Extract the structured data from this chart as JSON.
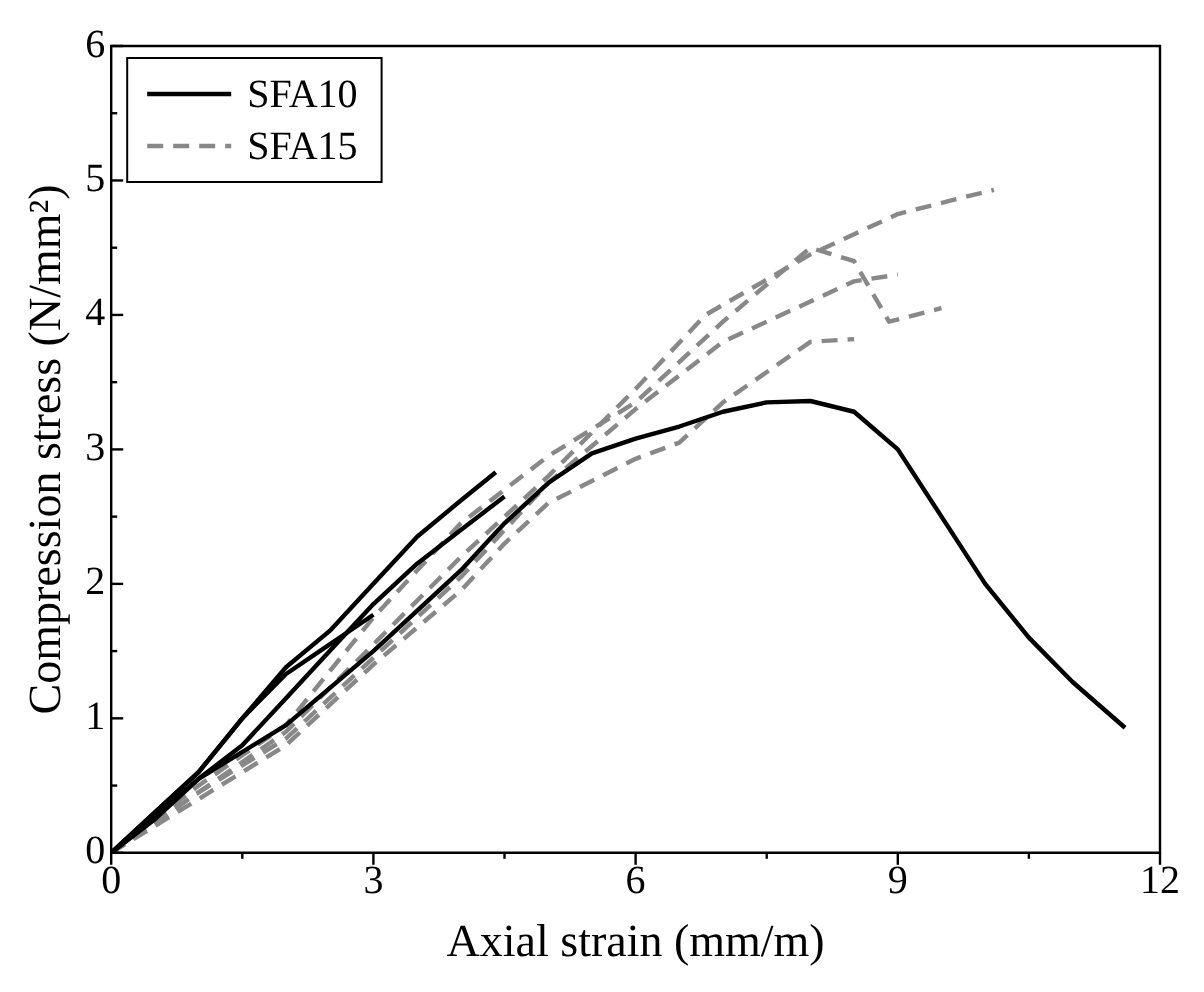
{
  "chart_data": {
    "type": "line",
    "xlabel": "Axial strain (mm/m)",
    "ylabel": "Compression stress (N/mm²)",
    "xlim": [
      0,
      12
    ],
    "xticks": [
      0,
      {
        "value": 1.5,
        "label": null
      },
      3,
      {
        "value": 4.5,
        "label": null
      },
      6,
      {
        "value": 7.5,
        "label": null
      },
      9,
      {
        "value": 10.5,
        "label": null
      },
      12
    ],
    "ylim": [
      0,
      6
    ],
    "yticks": [
      0,
      {
        "value": 0.5,
        "label": null
      },
      1,
      {
        "value": 1.5,
        "label": null
      },
      2,
      {
        "value": 2.5,
        "label": null
      },
      3,
      {
        "value": 3.5,
        "label": null
      },
      4,
      {
        "value": 4.5,
        "label": null
      },
      5,
      {
        "value": 5.5,
        "label": null
      },
      6
    ],
    "grid": false,
    "legend": "top left",
    "marker": "none",
    "series": [
      {
        "name": "SFA10",
        "color": "#000000",
        "line_style": "solid",
        "x": [
          0,
          0.5,
          1,
          1.5,
          2,
          2.5,
          3,
          3.5,
          4,
          4.4
        ],
        "values": [
          0,
          0.3,
          0.6,
          1.0,
          1.38,
          1.65,
          2.0,
          2.35,
          2.62,
          2.83
        ]
      },
      {
        "color": "#000000",
        "line_style": "solid",
        "x": [
          0,
          0.5,
          1,
          1.5,
          2,
          2.5,
          3
        ],
        "values": [
          0,
          0.3,
          0.6,
          1.0,
          1.33,
          1.55,
          1.77
        ]
      },
      {
        "color": "#000000",
        "line_style": "solid",
        "x": [
          0,
          0.5,
          1,
          1.5,
          2,
          2.5,
          3,
          3.5,
          4,
          4.5
        ],
        "values": [
          0,
          0.25,
          0.55,
          0.8,
          1.15,
          1.5,
          1.85,
          2.15,
          2.4,
          2.65
        ]
      },
      {
        "color": "#000000",
        "line_style": "solid",
        "x": [
          0,
          1,
          2,
          3,
          4,
          4.5,
          5,
          5.5,
          6,
          6.5,
          7,
          7.5,
          8,
          8.5,
          9,
          9.5,
          10,
          10.5,
          11,
          11.6
        ],
        "values": [
          0,
          0.55,
          0.95,
          1.5,
          2.1,
          2.45,
          2.75,
          2.97,
          3.08,
          3.17,
          3.28,
          3.35,
          3.36,
          3.28,
          3.0,
          2.5,
          2.0,
          1.6,
          1.27,
          0.93
        ]
      },
      {
        "name": "SFA15",
        "color": "#888888",
        "line_style": "dashed",
        "x": [
          0,
          1,
          2,
          3,
          4,
          5,
          6,
          6.8,
          8,
          9,
          9.6,
          10.1
        ],
        "values": [
          0,
          0.45,
          0.9,
          1.55,
          2.2,
          2.8,
          3.45,
          4.0,
          4.45,
          4.75,
          4.85,
          4.93
        ]
      },
      {
        "color": "#888888",
        "line_style": "dashed",
        "x": [
          0,
          1,
          2,
          3,
          4,
          5,
          6,
          7,
          8,
          8.5,
          8.9,
          9.5
        ],
        "values": [
          0,
          0.5,
          0.95,
          1.75,
          2.45,
          2.95,
          3.35,
          3.95,
          4.5,
          4.4,
          3.95,
          4.05
        ]
      },
      {
        "color": "#888888",
        "line_style": "dashed",
        "x": [
          0,
          1,
          2,
          3,
          4,
          5,
          6,
          7,
          8,
          8.5,
          9
        ],
        "values": [
          0,
          0.45,
          0.85,
          1.45,
          2.05,
          2.75,
          3.3,
          3.8,
          4.1,
          4.25,
          4.3
        ]
      },
      {
        "color": "#888888",
        "line_style": "dashed",
        "x": [
          0,
          1,
          2,
          3,
          4,
          4.5,
          5,
          6,
          6.5,
          7,
          8,
          8.5
        ],
        "values": [
          0,
          0.4,
          0.8,
          1.4,
          1.95,
          2.3,
          2.6,
          2.93,
          3.05,
          3.35,
          3.8,
          3.82
        ]
      }
    ]
  }
}
